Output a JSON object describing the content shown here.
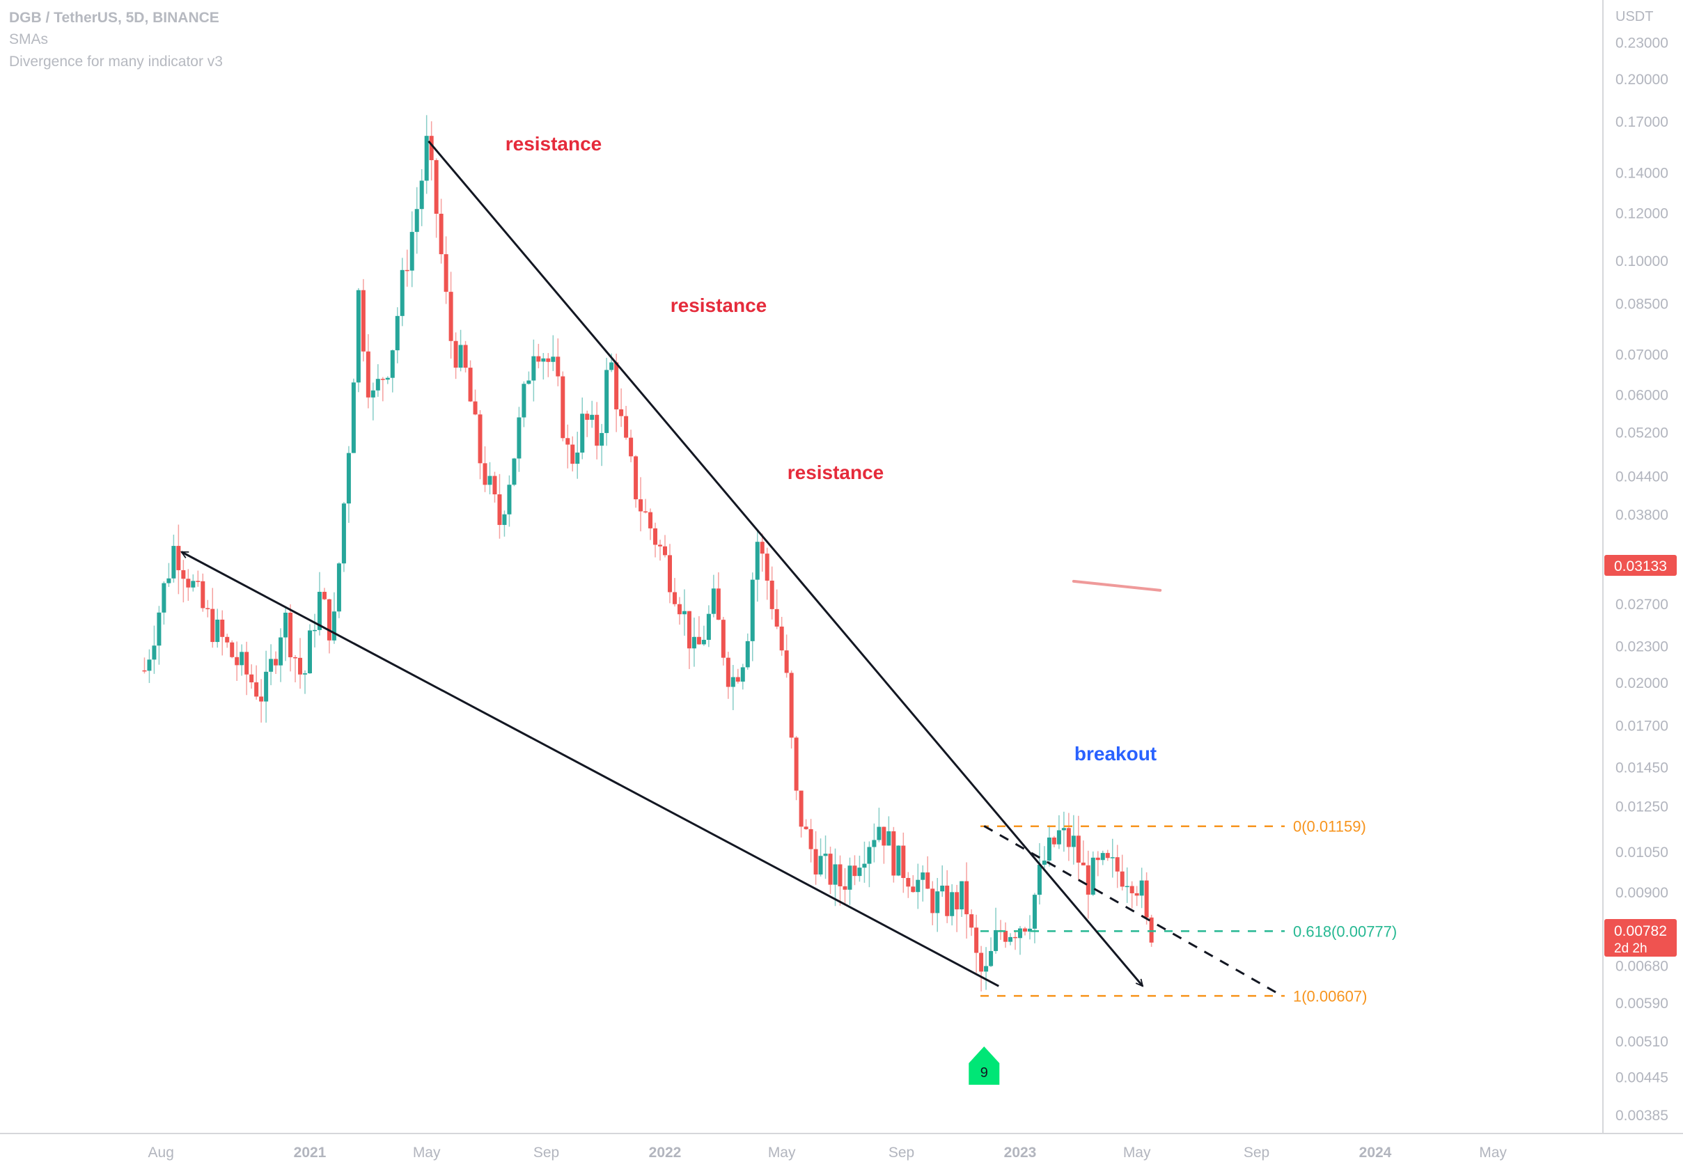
{
  "header": {
    "symbol": "DGB / TetherUS, 5D, BINANCE",
    "indicator_1": "SMAs",
    "indicator_2": "Divergence for many indicator v3"
  },
  "colors": {
    "up": "#26a69a",
    "down": "#ef5350",
    "price_tag": "#ef5350",
    "annotation_red": "#e52b3b",
    "annotation_blue": "#2962ff",
    "fib_level": "#f7941d",
    "fib_mid": "#26b892",
    "signal_badge": "#00e676",
    "grid_axis": "#d6d7da",
    "axis_text": "#b2b5be"
  },
  "chart_data": {
    "type": "candlestick",
    "symbol": "DGB / TetherUS",
    "interval": "5D",
    "exchange": "BINANCE",
    "y_scale": "log",
    "y_unit": "USDT",
    "ylim": [
      0.0035,
      0.245
    ],
    "xlim": [
      "2020-07-08",
      "2024-06-30"
    ],
    "y_ticks": [
      0.23,
      0.2,
      0.17,
      0.14,
      0.12,
      0.1,
      0.085,
      0.07,
      0.06,
      0.052,
      0.044,
      0.038,
      0.027,
      0.023,
      0.02,
      0.017,
      0.0145,
      0.0125,
      0.0105,
      0.009,
      0.0068,
      0.0059,
      0.0051,
      0.00445,
      0.00385
    ],
    "y_tick_labels": [
      "0.23000",
      "0.20000",
      "0.17000",
      "0.14000",
      "0.12000",
      "0.10000",
      "0.08500",
      "0.07000",
      "0.06000",
      "0.05200",
      "0.04400",
      "0.03800",
      "0.02700",
      "0.02300",
      "0.02000",
      "0.01700",
      "0.01450",
      "0.01250",
      "0.01050",
      "0.00900",
      "0.00680",
      "0.00590",
      "0.00510",
      "0.00445",
      "0.00385"
    ],
    "x_ticks": [
      {
        "label": "Aug",
        "date": "2020-08-01",
        "bold": false
      },
      {
        "label": "2021",
        "date": "2021-01-01",
        "bold": true
      },
      {
        "label": "May",
        "date": "2021-05-01",
        "bold": false
      },
      {
        "label": "Sep",
        "date": "2021-09-01",
        "bold": false
      },
      {
        "label": "2022",
        "date": "2022-01-01",
        "bold": true
      },
      {
        "label": "May",
        "date": "2022-05-01",
        "bold": false
      },
      {
        "label": "Sep",
        "date": "2022-09-01",
        "bold": false
      },
      {
        "label": "2023",
        "date": "2023-01-01",
        "bold": true
      },
      {
        "label": "May",
        "date": "2023-05-01",
        "bold": false
      },
      {
        "label": "Sep",
        "date": "2023-09-01",
        "bold": false
      },
      {
        "label": "2024",
        "date": "2024-01-01",
        "bold": true
      },
      {
        "label": "May",
        "date": "2024-05-01",
        "bold": false
      }
    ],
    "candle_anchors": [
      [
        "2020-07-15",
        0.021
      ],
      [
        "2020-08-15",
        0.034
      ],
      [
        "2020-09-15",
        0.026
      ],
      [
        "2020-10-15",
        0.022
      ],
      [
        "2020-11-15",
        0.019
      ],
      [
        "2020-12-05",
        0.026
      ],
      [
        "2020-12-25",
        0.02
      ],
      [
        "2021-01-10",
        0.028
      ],
      [
        "2021-01-25",
        0.024
      ],
      [
        "2021-02-10",
        0.05
      ],
      [
        "2021-02-20",
        0.088
      ],
      [
        "2021-03-05",
        0.058
      ],
      [
        "2021-03-25",
        0.07
      ],
      [
        "2021-04-10",
        0.1
      ],
      [
        "2021-04-22",
        0.125
      ],
      [
        "2021-05-01",
        0.155
      ],
      [
        "2021-05-10",
        0.125
      ],
      [
        "2021-05-25",
        0.075
      ],
      [
        "2021-06-10",
        0.065
      ],
      [
        "2021-06-25",
        0.047
      ],
      [
        "2021-07-15",
        0.037
      ],
      [
        "2021-08-01",
        0.05
      ],
      [
        "2021-08-20",
        0.075
      ],
      [
        "2021-09-10",
        0.065
      ],
      [
        "2021-09-25",
        0.046
      ],
      [
        "2021-10-10",
        0.055
      ],
      [
        "2021-10-25",
        0.05
      ],
      [
        "2021-11-05",
        0.07
      ],
      [
        "2021-11-20",
        0.05
      ],
      [
        "2021-12-05",
        0.04
      ],
      [
        "2021-12-25",
        0.034
      ],
      [
        "2022-01-15",
        0.028
      ],
      [
        "2022-02-01",
        0.022
      ],
      [
        "2022-02-20",
        0.027
      ],
      [
        "2022-03-10",
        0.02
      ],
      [
        "2022-03-25",
        0.023
      ],
      [
        "2022-04-05",
        0.035
      ],
      [
        "2022-04-20",
        0.028
      ],
      [
        "2022-05-05",
        0.021
      ],
      [
        "2022-05-15",
        0.013
      ],
      [
        "2022-05-28",
        0.0108
      ],
      [
        "2022-06-15",
        0.0098
      ],
      [
        "2022-07-01",
        0.0093
      ],
      [
        "2022-07-20",
        0.0105
      ],
      [
        "2022-08-10",
        0.0118
      ],
      [
        "2022-08-25",
        0.0102
      ],
      [
        "2022-09-15",
        0.0095
      ],
      [
        "2022-10-01",
        0.0088
      ],
      [
        "2022-10-20",
        0.0086
      ],
      [
        "2022-11-05",
        0.0089
      ],
      [
        "2022-11-15",
        0.0071
      ],
      [
        "2022-11-25",
        0.0064
      ],
      [
        "2022-12-10",
        0.0078
      ],
      [
        "2022-12-25",
        0.0079
      ],
      [
        "2023-01-10",
        0.0082
      ],
      [
        "2023-01-25",
        0.0101
      ],
      [
        "2023-02-10",
        0.0112
      ],
      [
        "2023-02-25",
        0.0108
      ],
      [
        "2023-03-10",
        0.0094
      ],
      [
        "2023-03-25",
        0.0099
      ],
      [
        "2023-04-10",
        0.0098
      ],
      [
        "2023-04-25",
        0.0097
      ],
      [
        "2023-05-05",
        0.0092
      ],
      [
        "2023-05-10",
        0.0079
      ],
      [
        "2023-05-20",
        0.00782
      ]
    ],
    "last_price": "0.00782",
    "countdown": "2d 2h",
    "last_price_scale_tag": "0.03133",
    "fibonacci_retracement": [
      {
        "label": "0(0.01159)",
        "price": 0.01159,
        "color": "#f7941d"
      },
      {
        "label": "0.618(0.00777)",
        "price": 0.00777,
        "color": "#26b892"
      },
      {
        "label": "1(0.00607)",
        "price": 0.00607,
        "color": "#f7941d"
      }
    ],
    "annotations": [
      {
        "text": "resistance",
        "color": "#e52b3b"
      },
      {
        "text": "resistance",
        "color": "#e52b3b"
      },
      {
        "text": "resistance",
        "color": "#e52b3b"
      },
      {
        "text": "breakout",
        "color": "#2962ff"
      }
    ],
    "trendlines": [
      {
        "name": "descending resistance",
        "from": [
          "2021-05-03",
          0.158
        ],
        "to": [
          "2023-05-07",
          0.0063
        ],
        "style": "solid",
        "arrow": "end"
      },
      {
        "name": "descending support",
        "from": [
          "2020-08-22",
          0.033
        ],
        "to": [
          "2022-12-10",
          0.0063
        ],
        "style": "solid",
        "arrow": "start"
      },
      {
        "name": "breakout retest line",
        "from": [
          "2022-11-25",
          0.0116
        ],
        "to": [
          "2023-09-25",
          0.0061
        ],
        "style": "dashed",
        "arrow": "none"
      }
    ],
    "sma_segment": {
      "from": [
        "2023-02-25",
        0.0295
      ],
      "to": [
        "2023-05-25",
        0.0285
      ],
      "color": "#ef9a9a"
    },
    "signal_badge": {
      "text": "9",
      "date": "2022-11-25"
    },
    "y_axis_unit": "USDT"
  }
}
